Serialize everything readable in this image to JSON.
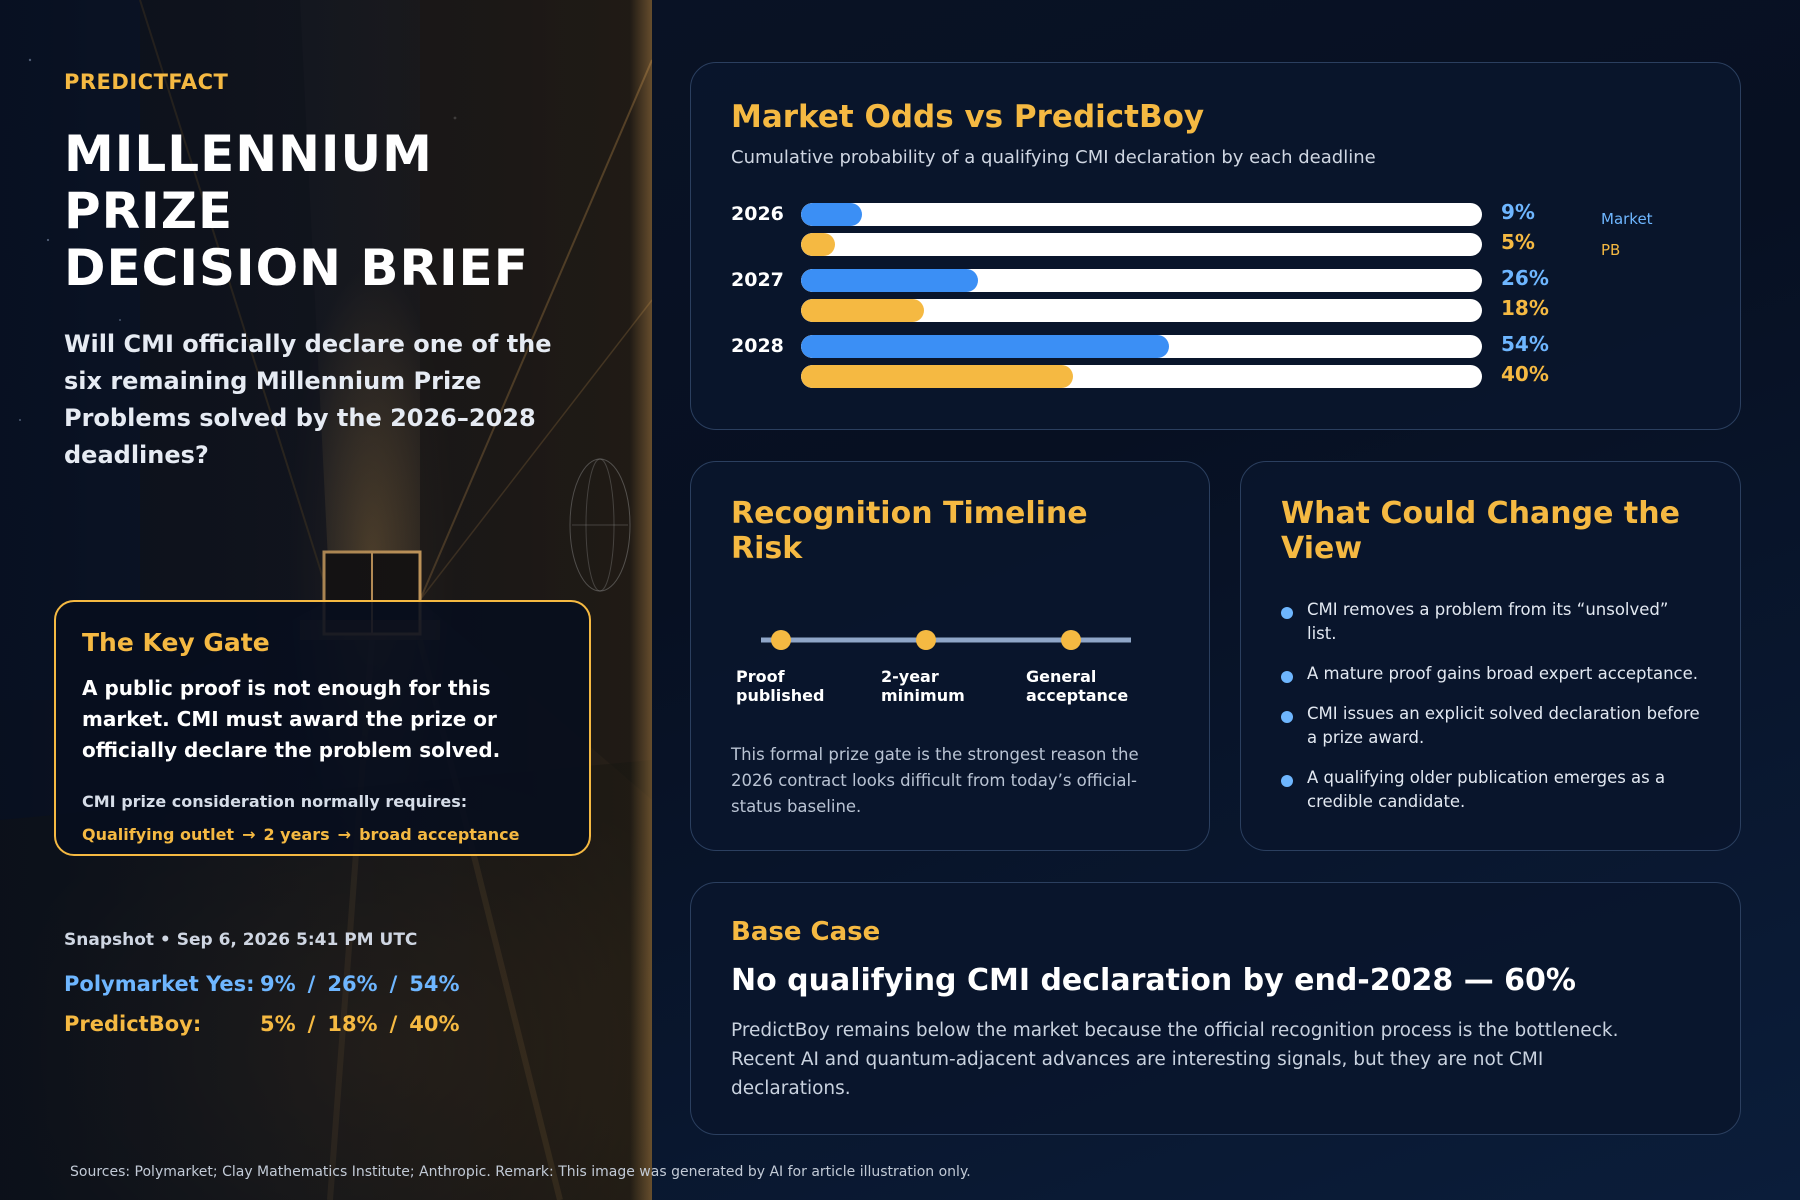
{
  "brand": "PREDICTFACT",
  "title_lines": [
    "MILLENNIUM",
    "PRIZE",
    "DECISION BRIEF"
  ],
  "question": "Will CMI officially declare one of the six remaining Millennium Prize Problems solved by the 2026–2028 deadlines?",
  "key_gate": {
    "title": "The Key Gate",
    "body": "A public proof is not enough for this market. CMI must award the prize or officially declare the problem solved.",
    "note": "CMI prize consideration normally requires:",
    "flow": [
      "Qualifying outlet",
      "2 years",
      "broad acceptance"
    ],
    "arrow": "→"
  },
  "snapshot": "Snapshot • Sep 6, 2026 5:41 PM UTC",
  "odds": {
    "market_label": "Polymarket Yes:",
    "market_values": [
      "9%",
      "26%",
      "54%"
    ],
    "pb_label": "PredictBoy:",
    "pb_values": [
      "5%",
      "18%",
      "40%"
    ],
    "separator": "/"
  },
  "chart_card": {
    "title": "Market Odds vs PredictBoy",
    "subtitle": "Cumulative probability of a qualifying CMI declaration by each deadline"
  },
  "chart_data": {
    "type": "bar",
    "orientation": "horizontal",
    "categories": [
      "2026",
      "2027",
      "2028"
    ],
    "series": [
      {
        "name": "Market",
        "values": [
          9,
          26,
          54
        ],
        "labels": [
          "9%",
          "26%",
          "54%"
        ],
        "color": "#3b8ff5"
      },
      {
        "name": "PB",
        "values": [
          5,
          18,
          40
        ],
        "labels": [
          "5%",
          "18%",
          "40%"
        ],
        "color": "#f5b942"
      }
    ],
    "xlim": [
      0,
      100
    ],
    "legend": "right"
  },
  "timeline_card": {
    "title": "Recognition Timeline Risk",
    "milestones": [
      {
        "line1": "Proof",
        "line2": "published"
      },
      {
        "line1": "2-year",
        "line2": "minimum"
      },
      {
        "line1": "General",
        "line2": "acceptance"
      }
    ],
    "note": "This formal prize gate is the strongest reason the 2026 contract looks difficult from today’s official-status baseline."
  },
  "view_card": {
    "title": "What Could Change the View",
    "items": [
      "CMI removes a problem from its “unsolved” list.",
      "A mature proof gains broad expert acceptance.",
      "CMI issues an explicit solved declaration before a prize award.",
      "A qualifying older publication emerges as a credible candidate."
    ]
  },
  "base_case": {
    "title": "Base Case",
    "headline": "No qualifying CMI declaration by end-2028 — 60%",
    "body": "PredictBoy remains below the market because the official recognition process is the bottleneck. Recent AI and quantum-adjacent advances are interesting signals, but they are not CMI declarations."
  },
  "footer": "Sources: Polymarket; Clay Mathematics Institute; Anthropic.  Remark: This image was generated by AI for article illustration only.",
  "colors": {
    "accent": "#f5b942",
    "market": "#3b8ff5",
    "market_text": "#6eb6ff",
    "timeline_line": "#8fa6c8"
  }
}
